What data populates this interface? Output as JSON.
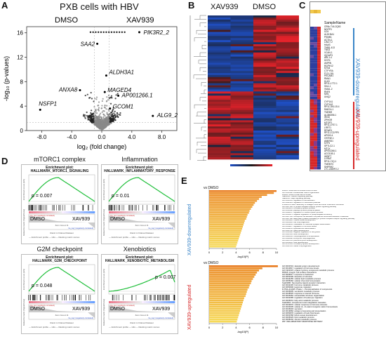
{
  "panelA": {
    "letter": "A",
    "title": "PXB cells with HBV",
    "left_group": "DMSO",
    "right_group": "XAV939",
    "xlabel": "log₂ (fold change)",
    "ylabel": "-log₁₀ (p-values)",
    "xticks": [
      "-8.0",
      "-4.0",
      "0.0",
      "4.0",
      "8.0"
    ],
    "yticks": [
      "0",
      "4",
      "8",
      "12",
      "16"
    ],
    "genes": [
      {
        "name": "PIK3R2_2",
        "x": 5.0,
        "y": 16.1
      },
      {
        "name": "SAA2",
        "x": -0.6,
        "y": 14.2
      },
      {
        "name": "ALDH3A1",
        "x": 0.6,
        "y": 9.0
      },
      {
        "name": "ANXA8",
        "x": -2.9,
        "y": 6.6
      },
      {
        "name": "MAGED4",
        "x": 0.4,
        "y": 6.3
      },
      {
        "name": "AP001266.1",
        "x": 2.2,
        "y": 5.7
      },
      {
        "name": "NSFP1",
        "x": -8.2,
        "y": 3.4
      },
      {
        "name": "GCOM1",
        "x": 1.1,
        "y": 3.6
      },
      {
        "name": "ALG9_2",
        "x": 6.8,
        "y": 2.4
      }
    ],
    "chart_data": {
      "type": "scatter",
      "title": "PXB cells with HBV",
      "xlabel": "log₂ (fold change)",
      "ylabel": "-log₁₀ (p-values)",
      "xlim": [
        -10,
        10
      ],
      "ylim": [
        0,
        17
      ]
    }
  },
  "panelB": {
    "letter": "B",
    "col1": "XAV939",
    "col2": "DMSO",
    "scale_label": "",
    "heatmap_colors": {
      "high": "#e5222a",
      "mid": "#1a1a1a",
      "low": "#1f4fc4"
    }
  },
  "panelC": {
    "letter": "C",
    "header": "SampleName",
    "down_label": "XAV939-downregulated",
    "up_label": "XAV939-upregulated",
    "down_color": "#3a85c8",
    "up_color": "#d62728",
    "down_genes": [
      "CR6c-T44-2Q63",
      "NDPP3",
      "IL24",
      "ALDH3A1",
      "PSMB1",
      "ACTN-1",
      "LINC7-2",
      "HAAS",
      "TMB1-413",
      "TNS3",
      "VCAN-1",
      "IQGAP3",
      "ARL1-4",
      "HGF4",
      "AMPIN",
      "RGPH12",
      "NTN4",
      "CTFYRA",
      "F12-L16L",
      "PECAM1",
      "RMA1",
      "KLK0",
      "RP11-17T2.1",
      "SKA-1",
      "VMA1-2",
      "RNF4",
      "MH1",
      "UNQ2"
    ],
    "up_genes": [
      "CYP1A1",
      "CYP1A2",
      "RP11-3K4.15.4",
      "RAB7A.1",
      "TMEM9",
      "AL356356.1",
      "IRGD",
      "ZPHGR",
      "MTGP2",
      "RP11-1F37.1",
      "LRRT1",
      "RFWR1",
      "RP11-1C1PP9",
      "AP000.4",
      "OSTNE-1",
      "ANKRD1",
      "NTF5",
      "SPTLC2-1",
      "MT1X",
      "AP001266.1",
      "ACO10B.1",
      "IHRIFT",
      "LYRM7",
      "RP11-7JQ.1",
      "TMEM73",
      "SHPRH2",
      "LTC-2269P2.2"
    ]
  },
  "panelD": {
    "letter": "D",
    "plots": [
      {
        "title": "mTORC1 complex",
        "subtitle": "Enrichment plot: HALLMARK_MTORC1_SIGNALING",
        "p": "p = 0.007",
        "left": "DMSO",
        "right": "XAV939",
        "curve": "up"
      },
      {
        "title": "Inflammation",
        "subtitle": "Enrichment plot: HALLMARK_INFLAMMATORY_RESPONSE",
        "p": "p = 0.01",
        "left": "DMSO",
        "right": "XAV939",
        "curve": "up"
      },
      {
        "title": "G2M checkpoint",
        "subtitle": "Enrichment plot: HALLMARK_G2M_CHECKPOINT",
        "p": "p = 0.048",
        "left": "DMSO",
        "right": "XAV939",
        "curve": "up"
      },
      {
        "title": "Xenobiotics",
        "subtitle": "Enrichment plot: HALLMARK_XENOBIOTIC_METABOLISM",
        "p": "p = 0.007",
        "left": "DMSO",
        "right": "XAV939",
        "curve": "down"
      }
    ],
    "axis_es": "Enrichment score (ES)",
    "axis_rank": "Ranked list metric (Signal2Noise)",
    "axis_x": "Rank in Ordered Dataset",
    "legend": "— Enrichment profile  — Hits  — Ranking metric scores",
    "pos_label": "'na_pos' (positively correlated)",
    "neg_label": "'na_neg' (negatively correlated)",
    "zero_cross": "Zero cross at 14"
  },
  "panelE": {
    "letter": "E",
    "top_header": "vs DMSO",
    "bot_header": "vs DMSO",
    "down_label": "XAV939-downregulated",
    "up_label": "XAV939-upregulated",
    "xlabel": "-log10(P)",
    "xticks": [
      "0",
      "2",
      "4",
      "6",
      "8",
      "10"
    ],
    "down_terms": [
      {
        "term": "M5865: NABA MATRISOME ASSOCIATED",
        "value": 10.0
      },
      {
        "term": "GO:0030198: extracellular matrix organization",
        "value": 9.6
      },
      {
        "term": "M5884: NABA CORE MATRISOME",
        "value": 8.6
      },
      {
        "term": "hsa04020: Calcium signaling pathway",
        "value": 7.8
      },
      {
        "term": "hsa04015: Rap1 signaling pathway",
        "value": 7.4
      },
      {
        "term": "GO:0030155: regulation of cell adhesion",
        "value": 7.1
      },
      {
        "term": "GO:0042391: regulation of membrane potential",
        "value": 6.8
      },
      {
        "term": "R-HSA-1474228: assembly of collagen fibrils and other multimeric structures",
        "value": 6.6
      },
      {
        "term": "GO:0007186: G protein-coupled receptor protein signaling pathway",
        "value": 6.4
      },
      {
        "term": "GO:0003013: circulatory system process",
        "value": 6.2
      },
      {
        "term": "GO:0018108: peptidyl-tyrosine phosphorylation",
        "value": 6.0
      },
      {
        "term": "GO:0090257: regulation of muscle system process",
        "value": 5.9
      },
      {
        "term": "GO:0010975: negative regulation of phospholipase A2 activity",
        "value": 5.7
      },
      {
        "term": "GO:0007156: homophilic cell adhesion via plasma membrane adhesion molecules",
        "value": 5.6
      },
      {
        "term": "GO:0007188: adenylate cyclase-modulating G protein-coupled receptor signaling pathway",
        "value": 5.5
      },
      {
        "term": "GO:0006936: muscle tissue development",
        "value": 5.3
      },
      {
        "term": "GO:0060485: cell morphogenesis",
        "value": 5.2
      },
      {
        "term": "GO:0050804: modulation of chemical synaptic transmission",
        "value": 5.1
      },
      {
        "term": "GO:0010817: regulation of hormone levels",
        "value": 5.0
      },
      {
        "term": "GO:0030855: epithelial cell differentiation",
        "value": 4.9
      },
      {
        "term": "GO:0048732: gland development",
        "value": 4.8
      },
      {
        "term": "GO:0030308: negative regulation of cell growth",
        "value": 4.7
      },
      {
        "term": "GO:0061564: axon development",
        "value": 4.6
      },
      {
        "term": "GO:0002009: morphogenesis of an epithelium",
        "value": 4.5
      },
      {
        "term": "GO:0048598: embryonic morphogenesis",
        "value": 4.4
      },
      {
        "term": "GO:0009791: post-embryonic development",
        "value": 4.3
      },
      {
        "term": "GO:0035295: tube development",
        "value": 4.2
      },
      {
        "term": "GO:0072359: circulatory system development",
        "value": 4.1
      },
      {
        "term": "GO:0048729: tissue morphogenesis",
        "value": 4.0
      }
    ],
    "up_terms": [
      {
        "term": "GO:0001501: skeletal system development",
        "value": 10.2
      },
      {
        "term": "GO:0010817: regulation of hormone levels",
        "value": 7.9
      },
      {
        "term": "GO:1901615: organic hydroxy compound metabolic process",
        "value": 7.4
      },
      {
        "term": "M5916: integrin cell surface interactions",
        "value": 7.1
      },
      {
        "term": "GO:0009617: response to bacterium",
        "value": 6.9
      },
      {
        "term": "GO:0051606: detection of stimulus",
        "value": 6.7
      },
      {
        "term": "GO:0044255: cellular lipid metabolic process",
        "value": 6.5
      },
      {
        "term": "GO:0055082: cellular chemical homeostasis",
        "value": 6.3
      },
      {
        "term": "hsa04080: Neuroactive ligand-receptor interaction",
        "value": 6.2
      },
      {
        "term": "GO:0042445: hormone metabolic process",
        "value": 6.0
      },
      {
        "term": "GO:0050900: leukocyte migration",
        "value": 5.9
      },
      {
        "term": "R-HSA-211945: Phase I - Functionalization of compounds",
        "value": 5.7
      },
      {
        "term": "GO:0006805: xenobiotic metabolic process",
        "value": 5.6
      },
      {
        "term": "GO:0048545: response to steroid hormone",
        "value": 5.5
      },
      {
        "term": "GO:0043062: extracellular structure organization",
        "value": 5.4
      },
      {
        "term": "GO:0002685: regulation of leukocyte migration",
        "value": 5.2
      },
      {
        "term": "GO:0006631: fatty acid metabolic process",
        "value": 5.1
      },
      {
        "term": "hsa04610: Complement and coagulation cascades",
        "value": 5.0
      },
      {
        "term": "GO:0032870: cellular response to hormone stimulus",
        "value": 4.9
      },
      {
        "term": "GO:0030005: cellular di-, tri-valent inorganic cation homeostasis",
        "value": 4.8
      },
      {
        "term": "GO:0046903: secretion",
        "value": 4.7
      },
      {
        "term": "GO:0019882: antigen processing and presentation",
        "value": 4.6
      },
      {
        "term": "GO:0050878: regulation of body fluid levels",
        "value": 4.5
      },
      {
        "term": "GO:0001568: blood vessel development",
        "value": 4.4
      },
      {
        "term": "GO:0006629: lipid metabolic process",
        "value": 4.3
      },
      {
        "term": "GO:0008202: steroid metabolic process",
        "value": 4.2
      },
      {
        "term": "WP: INFLAMMATORY RESPONSE PATHWAY",
        "value": 4.1
      }
    ]
  }
}
